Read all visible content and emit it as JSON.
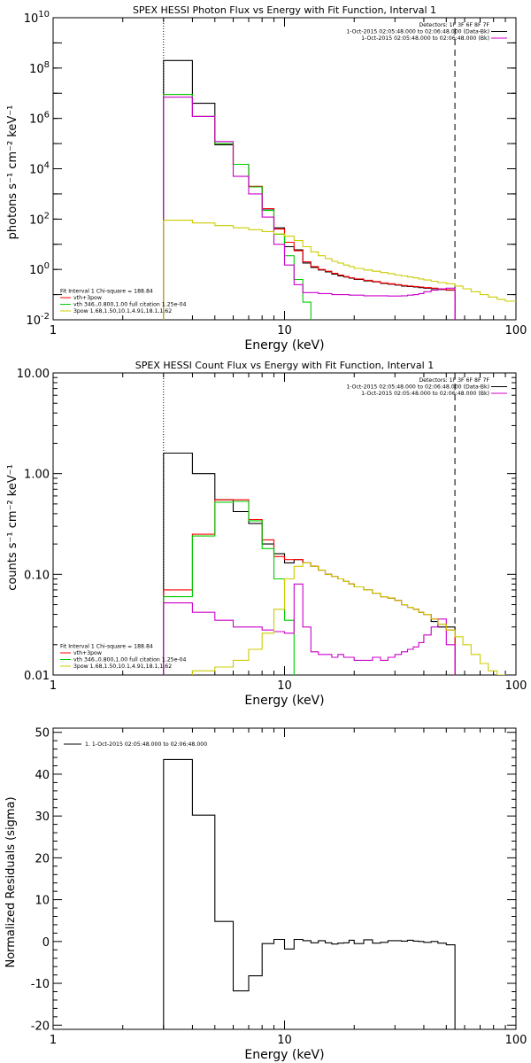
{
  "chart_data": [
    {
      "type": "line",
      "title": "SPEX HESSI Photon Flux vs Energy with Fit Function, Interval 1",
      "xlabel": "Energy (keV)",
      "ylabel": "photons s⁻¹ cm⁻² keV⁻¹",
      "x_scale": "log",
      "y_scale": "log",
      "xlim": [
        1,
        100
      ],
      "ylim": [
        0.01,
        10000000000.0
      ],
      "x_ticks": [
        {
          "v": 1,
          "label": "1"
        },
        {
          "v": 10,
          "label": "10"
        },
        {
          "v": 100,
          "label": "100"
        }
      ],
      "y_ticks": [
        {
          "v": 0.01,
          "base": "10",
          "exp": "-2"
        },
        {
          "v": 1,
          "base": "10",
          "exp": "0"
        },
        {
          "v": 100,
          "base": "10",
          "exp": "2"
        },
        {
          "v": 10000,
          "base": "10",
          "exp": "4"
        },
        {
          "v": 1000000,
          "base": "10",
          "exp": "6"
        },
        {
          "v": 100000000,
          "base": "10",
          "exp": "8"
        },
        {
          "v": 10000000000,
          "base": "10",
          "exp": "10"
        }
      ],
      "vlines": [
        {
          "x": 3.0,
          "style": "dotted"
        },
        {
          "x": 54.5,
          "style": "dashed"
        }
      ],
      "legend_top": [
        {
          "text": "Detectors: 1F 3F 6F 8F 7F",
          "color": null
        },
        {
          "text": "1-Oct-2015 02:05:48.000 to 02:06:48.000 (Data-Bk)",
          "color": "#000000"
        },
        {
          "text": "1-Oct-2015 02:05:48.000 to 02:06:48.000 (Bk)",
          "color": "#cc00cc"
        }
      ],
      "legend_bottom": [
        {
          "text": "Fit Interval 1    Chi-square = 188.84",
          "color": null
        },
        {
          "text": "vth+3pow",
          "color": "#ff0000"
        },
        {
          "text": "vth 346.,0.800,1.00  full citation 1.25e-04",
          "color": "#00cc00"
        },
        {
          "text": "3pow 1.68,1.50,10.1,4.91,18.1,1.62",
          "color": "#cccc00"
        }
      ],
      "edges": [
        3.0,
        4.0,
        5.0,
        6.0,
        7.0,
        8.0,
        9.0,
        10.0,
        11.0,
        12.0,
        13.0,
        14.0,
        15.0,
        16.0,
        17.0,
        18.0,
        19.0,
        20.0,
        22.0,
        24.0,
        26.0,
        28.0,
        30.0,
        32.0,
        34.0,
        36.0,
        38.0,
        40.0,
        43.0,
        46.0,
        50.0,
        54.5
      ],
      "series": [
        {
          "name": "Data-Bk",
          "color": "#000000",
          "values": [
            200000000.0,
            4000000.0,
            90000.0,
            15000.0,
            2000.0,
            250.0,
            45,
            8,
            6,
            1.8,
            1.2,
            0.95,
            0.8,
            0.65,
            0.55,
            0.5,
            0.45,
            0.4,
            0.35,
            0.32,
            0.28,
            0.26,
            0.24,
            0.22,
            0.21,
            0.2,
            0.19,
            0.18,
            0.17,
            0.16,
            0.15
          ]
        },
        {
          "name": "vth+3pow",
          "color": "#ff0000",
          "values": [
            9000000.0,
            1200000.0,
            100000.0,
            15000.0,
            2000.0,
            260.0,
            40,
            12,
            5.5,
            2,
            1.3,
            1,
            0.85,
            0.7,
            0.6,
            0.52,
            0.47,
            0.42,
            0.37,
            0.33,
            0.29,
            0.27,
            0.25,
            0.23,
            0.22,
            0.21,
            0.2,
            0.19,
            0.18,
            0.165,
            0.155
          ]
        },
        {
          "name": "vth",
          "color": "#00cc00",
          "values": [
            9000000.0,
            1200000.0,
            100000.0,
            15000.0,
            1900.0,
            220.0,
            25,
            3.5,
            0.4,
            0.05,
            0.008
          ]
        },
        {
          "name": "Bk",
          "color": "#cc00cc",
          "values": [
            7000000.0,
            1200000.0,
            120000.0,
            5000.0,
            1000.0,
            120.0,
            10,
            1.5,
            0.25,
            0.12,
            0.12,
            0.11,
            0.11,
            0.1,
            0.1,
            0.1,
            0.095,
            0.095,
            0.09,
            0.09,
            0.09,
            0.088,
            0.088,
            0.09,
            0.095,
            0.1,
            0.11,
            0.13,
            0.15,
            0.17,
            0.18
          ]
        },
        {
          "name": "3pow",
          "color": "#cccc00",
          "edges": [
            3.0,
            4.0,
            5.0,
            6.0,
            7.0,
            8.0,
            9.0,
            10.0,
            11.0,
            12.0,
            13.0,
            14.0,
            15.0,
            16.0,
            17.0,
            18.0,
            19.0,
            20.0,
            22.0,
            24.0,
            26.0,
            28.0,
            30.0,
            32.0,
            34.0,
            36.0,
            38.0,
            40.0,
            43.0,
            46.0,
            50.0,
            54.5,
            59.0,
            64.0,
            70.0,
            76.0,
            83.0,
            90.0,
            100.0
          ],
          "values": [
            90,
            70,
            55,
            45,
            38,
            32,
            26,
            21,
            14,
            8,
            5,
            3.5,
            2.7,
            2.1,
            1.8,
            1.5,
            1.3,
            1.1,
            0.95,
            0.85,
            0.75,
            0.68,
            0.6,
            0.55,
            0.5,
            0.46,
            0.42,
            0.38,
            0.34,
            0.3,
            0.27,
            0.22,
            0.17,
            0.13,
            0.1,
            0.08,
            0.065,
            0.055
          ]
        }
      ]
    },
    {
      "type": "line",
      "title": "SPEX HESSI Count Flux vs Energy with Fit Function, Interval 1",
      "xlabel": "Energy (keV)",
      "ylabel": "counts s⁻¹ cm⁻² keV⁻¹",
      "x_scale": "log",
      "y_scale": "log",
      "xlim": [
        1,
        100
      ],
      "ylim": [
        0.01,
        10
      ],
      "x_ticks": [
        {
          "v": 1,
          "label": "1"
        },
        {
          "v": 10,
          "label": "10"
        },
        {
          "v": 100,
          "label": "100"
        }
      ],
      "y_ticks": [
        {
          "v": 0.01,
          "label": "0.01"
        },
        {
          "v": 0.1,
          "label": "0.10"
        },
        {
          "v": 1,
          "label": "1.00"
        },
        {
          "v": 10,
          "label": "10.00"
        }
      ],
      "vlines": [
        {
          "x": 3.0,
          "style": "dotted"
        },
        {
          "x": 54.5,
          "style": "dashed"
        }
      ],
      "legend_top": [
        {
          "text": "Detectors: 1F 3F 6F 8F 7F",
          "color": null
        },
        {
          "text": "1-Oct-2015 02:05:48.000 to 02:06:48.000 (Data-Bk)",
          "color": "#000000"
        },
        {
          "text": "1-Oct-2015 02:05:48.000 to 02:06:48.000 (Bk)",
          "color": "#cc00cc"
        }
      ],
      "legend_bottom": [
        {
          "text": "Fit Interval 1    Chi-square = 188.84",
          "color": null
        },
        {
          "text": "vth+3pow",
          "color": "#ff0000"
        },
        {
          "text": "vth 346.,0.800,1.00  full citation 1.25e-04",
          "color": "#00cc00"
        },
        {
          "text": "3pow 1.68,1.50,10.1,4.91,18.1,1.62",
          "color": "#cccc00"
        }
      ],
      "edges": [
        3.0,
        4.0,
        5.0,
        6.0,
        7.0,
        8.0,
        9.0,
        10.0,
        11.0,
        12.0,
        13.0,
        14.0,
        15.0,
        16.0,
        17.0,
        18.0,
        19.0,
        20.0,
        22.0,
        24.0,
        26.0,
        28.0,
        30.0,
        32.0,
        34.0,
        36.0,
        38.0,
        40.0,
        43.0,
        46.0,
        50.0,
        54.5
      ],
      "series": [
        {
          "name": "Data-Bk",
          "color": "#000000",
          "values": [
            1.6,
            1.0,
            0.55,
            0.42,
            0.32,
            0.2,
            0.16,
            0.13,
            0.14,
            0.13,
            0.12,
            0.11,
            0.1,
            0.095,
            0.09,
            0.085,
            0.08,
            0.075,
            0.07,
            0.065,
            0.06,
            0.058,
            0.055,
            0.05,
            0.047,
            0.045,
            0.042,
            0.04,
            0.034,
            0.03,
            0.03
          ]
        },
        {
          "name": "vth+3pow",
          "color": "#ff0000",
          "values": [
            0.07,
            0.25,
            0.55,
            0.55,
            0.35,
            0.22,
            0.15,
            0.14,
            0.14,
            0.13,
            0.12,
            0.11,
            0.1,
            0.095,
            0.09,
            0.085,
            0.08,
            0.075,
            0.07,
            0.065,
            0.06,
            0.058,
            0.055,
            0.05,
            0.047,
            0.045,
            0.042,
            0.04,
            0.036,
            0.032,
            0.028
          ]
        },
        {
          "name": "vth",
          "color": "#00cc00",
          "values": [
            0.06,
            0.24,
            0.52,
            0.53,
            0.34,
            0.18,
            0.09,
            0.035,
            0.006
          ]
        },
        {
          "name": "Bk",
          "color": "#cc00cc",
          "values": [
            0.052,
            0.042,
            0.035,
            0.03,
            0.03,
            0.028,
            0.027,
            0.026,
            0.08,
            0.03,
            0.017,
            0.016,
            0.016,
            0.015,
            0.016,
            0.015,
            0.015,
            0.014,
            0.014,
            0.015,
            0.014,
            0.015,
            0.016,
            0.017,
            0.018,
            0.019,
            0.021,
            0.025,
            0.03,
            0.036,
            0.02
          ]
        },
        {
          "name": "3pow",
          "color": "#cccc00",
          "edges": [
            3.0,
            4.0,
            5.0,
            6.0,
            7.0,
            8.0,
            9.0,
            10.0,
            11.0,
            12.0,
            13.0,
            14.0,
            15.0,
            16.0,
            17.0,
            18.0,
            19.0,
            20.0,
            22.0,
            24.0,
            26.0,
            28.0,
            30.0,
            32.0,
            34.0,
            36.0,
            38.0,
            40.0,
            43.0,
            46.0,
            50.0,
            54.5,
            59.0,
            64.0,
            70.0,
            76.0,
            83.0,
            90.0,
            100.0
          ],
          "values": [
            0.006,
            0.011,
            0.012,
            0.014,
            0.018,
            0.026,
            0.045,
            0.09,
            0.12,
            0.13,
            0.12,
            0.11,
            0.1,
            0.095,
            0.09,
            0.085,
            0.08,
            0.075,
            0.07,
            0.065,
            0.06,
            0.058,
            0.055,
            0.05,
            0.047,
            0.045,
            0.042,
            0.04,
            0.036,
            0.032,
            0.028,
            0.024,
            0.02,
            0.016,
            0.013,
            0.011,
            0.01,
            0.009
          ]
        }
      ]
    },
    {
      "type": "line",
      "title": "",
      "xlabel": "Energy (keV)",
      "ylabel": "Normalized Residuals (sigma)",
      "x_scale": "log",
      "y_scale": "linear",
      "xlim": [
        1,
        100
      ],
      "ylim": [
        -21,
        51
      ],
      "x_ticks": [
        {
          "v": 1,
          "label": "1"
        },
        {
          "v": 10,
          "label": "10"
        },
        {
          "v": 100,
          "label": "100"
        }
      ],
      "y_ticks": [
        {
          "v": -20,
          "label": "-20"
        },
        {
          "v": -10,
          "label": "-10"
        },
        {
          "v": 0,
          "label": "0"
        },
        {
          "v": 10,
          "label": "10"
        },
        {
          "v": 20,
          "label": "20"
        },
        {
          "v": 30,
          "label": "30"
        },
        {
          "v": 40,
          "label": "40"
        },
        {
          "v": 50,
          "label": "50"
        }
      ],
      "vlines": [],
      "legend_top": [
        {
          "text": "1.  1-Oct-2015 02:05:48.000 to 02:06:48.000",
          "color": "#000000"
        }
      ],
      "legend_bottom": [],
      "edges": [
        3.0,
        4.0,
        5.0,
        6.0,
        7.0,
        8.0,
        9.0,
        10.0,
        11.0,
        12.0,
        13.0,
        14.0,
        15.0,
        16.0,
        17.0,
        18.0,
        19.0,
        20.0,
        22.0,
        24.0,
        26.0,
        28.0,
        30.0,
        32.0,
        34.0,
        36.0,
        38.0,
        40.0,
        43.0,
        46.0,
        50.0,
        54.5
      ],
      "series": [
        {
          "name": "Residuals",
          "color": "#000000",
          "values": [
            43.5,
            30.2,
            4.8,
            -11.8,
            -8.2,
            -0.5,
            0.5,
            -1.8,
            0.5,
            0.2,
            -0.3,
            0.2,
            -0.3,
            -0.6,
            -0.4,
            -0.3,
            0.3,
            -0.5,
            0.4,
            -0.4,
            -0.2,
            0.2,
            0.2,
            0.1,
            0.3,
            0.1,
            0.0,
            -0.2,
            0.0,
            -0.4,
            -0.8
          ]
        }
      ]
    }
  ]
}
